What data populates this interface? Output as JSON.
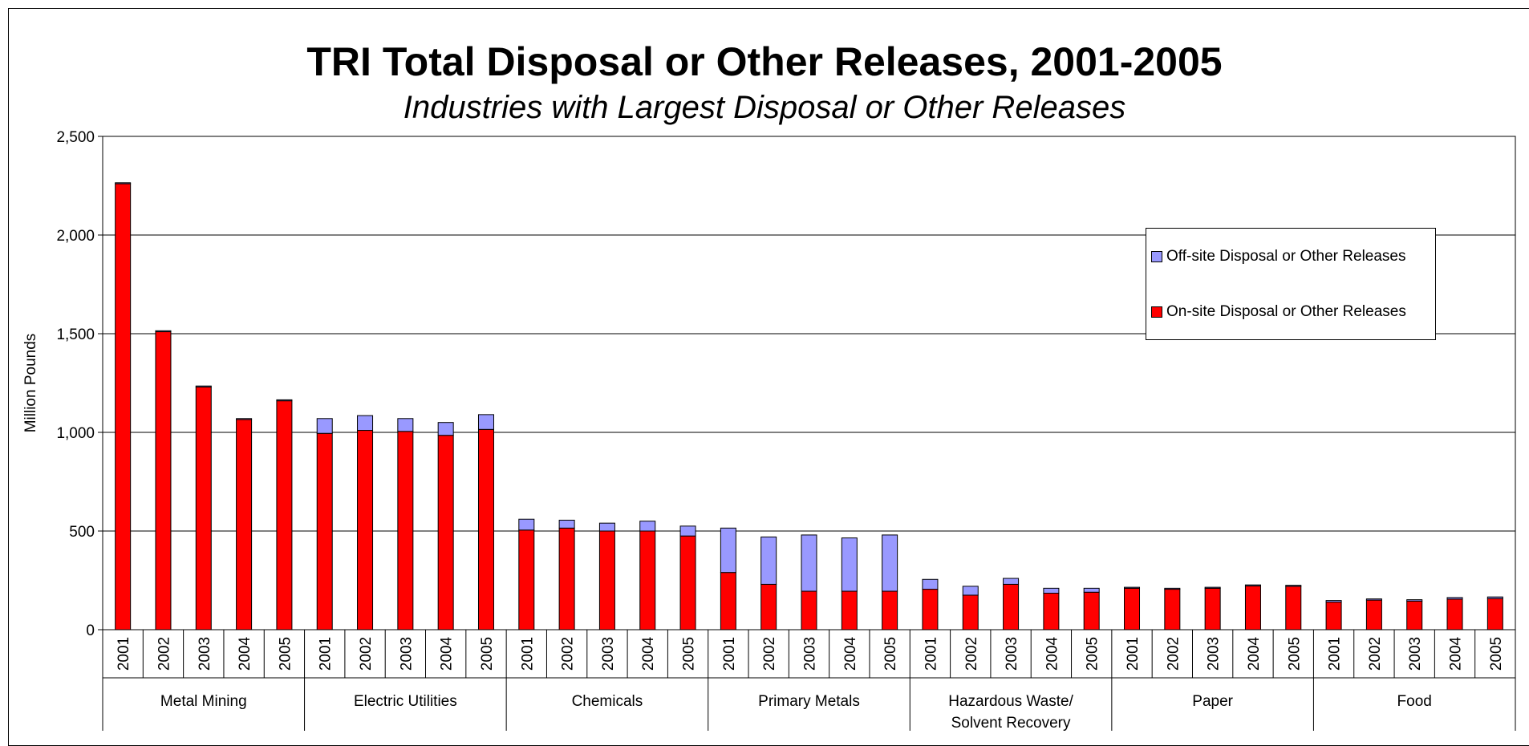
{
  "chart_data": {
    "type": "bar",
    "stacked": true,
    "title": "TRI Total Disposal or Other Releases, 2001-2005",
    "subtitle": "Industries with Largest Disposal or Other Releases",
    "ylabel": "Million Pounds",
    "ylim": [
      0,
      2500
    ],
    "yticks": [
      0,
      500,
      1000,
      1500,
      2000,
      2500
    ],
    "ytick_labels": [
      "0",
      "500",
      "1,000",
      "1,500",
      "2,000",
      "2,500"
    ],
    "grid": true,
    "legend_position": "top-right",
    "years": [
      "2001",
      "2002",
      "2003",
      "2004",
      "2005"
    ],
    "groups": [
      {
        "name": "Metal Mining",
        "name_lines": [
          "Metal Mining"
        ],
        "onsite": [
          2260,
          1510,
          1230,
          1065,
          1160
        ],
        "offsite": [
          5,
          5,
          5,
          5,
          5
        ]
      },
      {
        "name": "Electric Utilities",
        "name_lines": [
          "Electric Utilities"
        ],
        "onsite": [
          995,
          1010,
          1005,
          985,
          1015
        ],
        "offsite": [
          75,
          75,
          65,
          65,
          75
        ]
      },
      {
        "name": "Chemicals",
        "name_lines": [
          "Chemicals"
        ],
        "onsite": [
          505,
          515,
          500,
          500,
          475
        ],
        "offsite": [
          55,
          40,
          40,
          50,
          50
        ]
      },
      {
        "name": "Primary Metals",
        "name_lines": [
          "Primary Metals"
        ],
        "onsite": [
          290,
          230,
          195,
          195,
          195
        ],
        "offsite": [
          225,
          240,
          285,
          270,
          285
        ]
      },
      {
        "name": "Hazardous Waste/ Solvent Recovery",
        "name_lines": [
          "Hazardous Waste/",
          "Solvent Recovery"
        ],
        "onsite": [
          205,
          175,
          230,
          185,
          190
        ],
        "offsite": [
          50,
          45,
          30,
          25,
          20
        ]
      },
      {
        "name": "Paper",
        "name_lines": [
          "Paper"
        ],
        "onsite": [
          210,
          205,
          210,
          222,
          220
        ],
        "offsite": [
          5,
          5,
          5,
          5,
          5
        ]
      },
      {
        "name": "Food",
        "name_lines": [
          "Food"
        ],
        "onsite": [
          140,
          150,
          145,
          155,
          158
        ],
        "offsite": [
          8,
          6,
          7,
          8,
          8
        ]
      }
    ],
    "series": [
      {
        "name": "Off-site Disposal or Other Releases",
        "color": "#9999ff"
      },
      {
        "name": "On-site Disposal or Other Releases",
        "color": "#ff0000"
      }
    ]
  }
}
